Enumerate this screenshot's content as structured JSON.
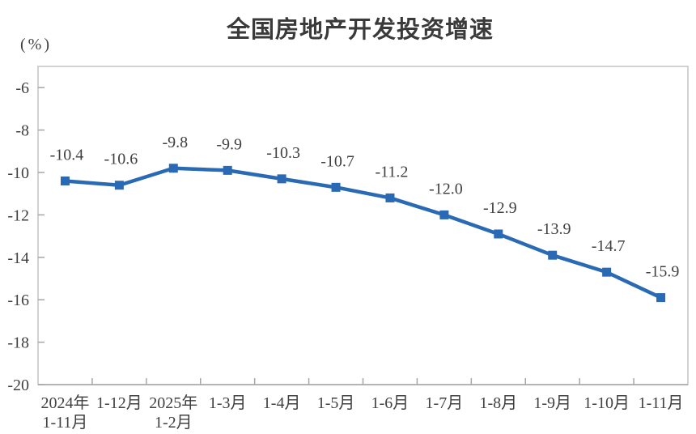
{
  "chart_data": {
    "type": "line",
    "title": "全国房地产开发投资增速",
    "ylabel": "(%)",
    "xlabel": "",
    "series_name": "全国房地产开发投资增速",
    "categories": [
      "2024年\n1-11月",
      "1-12月",
      "2025年\n1-2月",
      "1-3月",
      "1-4月",
      "1-5月",
      "1-6月",
      "1-7月",
      "1-8月",
      "1-9月",
      "1-10月",
      "1-11月"
    ],
    "values": [
      -10.4,
      -10.6,
      -9.8,
      -9.9,
      -10.3,
      -10.7,
      -11.2,
      -12.0,
      -12.9,
      -13.9,
      -14.7,
      -15.9
    ],
    "data_labels": [
      "-10.4",
      "-10.6",
      "-9.8",
      "-9.9",
      "-10.3",
      "-10.7",
      "-11.2",
      "-12.0",
      "-12.9",
      "-13.9",
      "-14.7",
      "-15.9"
    ],
    "y_ticks": [
      -6,
      -8,
      -10,
      -12,
      -14,
      -16,
      -18,
      -20
    ],
    "ylim": [
      -20,
      -5
    ],
    "grid": false,
    "legend": "none",
    "marker_shape": "square",
    "colors": {
      "line": "#2a6ab5",
      "marker": "#2a6ab5",
      "label_text": "#404040",
      "axis_border": "#c4c4c4",
      "axis_bottom": "#a6a6a6",
      "tick": "#a6a6a6"
    }
  }
}
